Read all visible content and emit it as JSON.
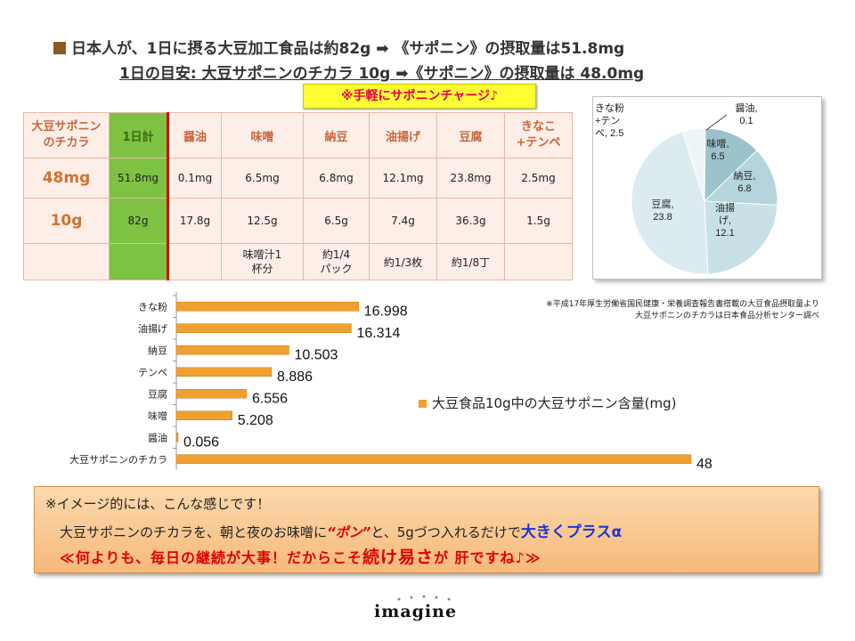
{
  "header": {
    "line1": "日本人が、1日に摂る大豆加工食品は約82g ➡ 《サポニン》の摂取量は51.8mg",
    "line2": "1日の目安: 大豆サポニンのチカラ 10g ➡《サポニン》の摂取量は 48.0mg",
    "badge": "※手軽にサポニンチャージ♪"
  },
  "table": {
    "corner_line1": "大豆サポニン",
    "corner_line2": "のチカラ",
    "total_header": "1日計",
    "columns": [
      "醤油",
      "味噌",
      "納豆",
      "油揚げ",
      "豆腐",
      "きなこ+テンペ"
    ],
    "rows": [
      {
        "label": "48mg",
        "total": "51.8mg",
        "cells": [
          "0.1mg",
          "6.5mg",
          "6.8mg",
          "12.1mg",
          "23.8mg",
          "2.5mg"
        ]
      },
      {
        "label": "10g",
        "total": "82g",
        "cells": [
          "17.8g",
          "12.5g",
          "6.5g",
          "7.4g",
          "36.3g",
          "1.5g"
        ]
      },
      {
        "label": "",
        "total": "",
        "cells": [
          "",
          "味噌汁1杯分",
          "約1/4パック",
          "約1/3枚",
          "約1/8丁",
          ""
        ]
      }
    ]
  },
  "colors": {
    "bar": "#f0a030",
    "table_header_text": "#c8663a",
    "total_col": "#7dc242",
    "accent_red": "#e00000",
    "accent_blue": "#1a35d6",
    "badge_bg": "#ffff33"
  },
  "chart_data": [
    {
      "type": "pie",
      "categories": [
        "醤油",
        "味噌",
        "納豆",
        "油揚げ",
        "豆腐",
        "きな粉+テンペ"
      ],
      "values": [
        0.1,
        6.5,
        6.8,
        12.1,
        23.8,
        2.5
      ],
      "labels": [
        "醤油, 0.1",
        "味噌, 6.5",
        "納豆, 6.8",
        "油揚げ, 12.1",
        "豆腐, 23.8",
        "きな粉+テンペ, 2.5"
      ],
      "colors": [
        "#7faab5",
        "#9cc2cc",
        "#b5d4dc",
        "#c8e0e6",
        "#dcebef",
        "#eef5f7"
      ]
    },
    {
      "type": "bar",
      "orientation": "horizontal",
      "categories": [
        "きな粉",
        "油揚げ",
        "納豆",
        "テンペ",
        "豆腐",
        "味噌",
        "醤油",
        "大豆サポニンのチカラ"
      ],
      "values": [
        16.998,
        16.314,
        10.503,
        8.886,
        6.556,
        5.208,
        0.056,
        48
      ],
      "value_labels": [
        "16.998",
        "16.314",
        "10.503",
        "8.886",
        "6.556",
        "5.208",
        "0.056",
        "48"
      ],
      "series_name": "大豆食品10g中の大豆サポニン含量(mg)",
      "legend": "right",
      "xlim": [
        0,
        50
      ]
    }
  ],
  "source": {
    "line1": "※平成17年厚生労働省国民健康・栄養調査報告書搭載の大豆食品摂取量より",
    "line2": "大豆サポニンのチカラは日本食品分析センター調べ"
  },
  "bottom": {
    "line1": "※イメージ的には、こんな感じです！",
    "line2_a": "大豆サポニンのチカラを、朝と夜のお味噌に",
    "line2_pon": "“ポン”",
    "line2_b": "と、5gづつ入れるだけで",
    "line2_plus": "大きくプラスα",
    "line3_a": "≪何よりも、毎日の継続が大事！だからこそ",
    "line3_big": "続け易さ",
    "line3_b": "が 肝ですね♪≫"
  },
  "logo": "imagine"
}
